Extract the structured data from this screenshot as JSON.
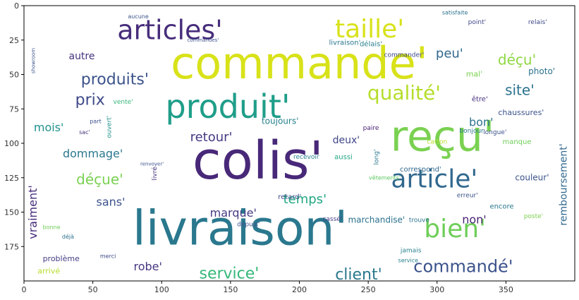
{
  "chart_data": {
    "type": "wordcloud",
    "x_ticks": [
      "0",
      "50",
      "100",
      "150",
      "200",
      "250",
      "300",
      "350"
    ],
    "y_ticks": [
      "0",
      "25",
      "50",
      "75",
      "100",
      "125",
      "150",
      "175"
    ],
    "x_range": [
      0,
      400
    ],
    "y_range": [
      0,
      200
    ],
    "y_inverted": true,
    "grid": false,
    "words": [
      {
        "text": "commande'",
        "x": 200,
        "y": 44,
        "size": 62,
        "color": "#d8e219",
        "rot": 0
      },
      {
        "text": "livraison'",
        "x": 157,
        "y": 164,
        "size": 68,
        "color": "#2a788e",
        "rot": 0
      },
      {
        "text": "colis'",
        "x": 170,
        "y": 115,
        "size": 74,
        "color": "#482878",
        "rot": 0
      },
      {
        "text": "reçu'",
        "x": 304,
        "y": 97,
        "size": 60,
        "color": "#7ad151",
        "rot": 0
      },
      {
        "text": "produit'",
        "x": 148,
        "y": 75,
        "size": 46,
        "color": "#1f9e89",
        "rot": 0
      },
      {
        "text": "articles'",
        "x": 106,
        "y": 19,
        "size": 38,
        "color": "#472d7b",
        "rot": 0
      },
      {
        "text": "taille'",
        "x": 251,
        "y": 18,
        "size": 36,
        "color": "#d8e219",
        "rot": 0
      },
      {
        "text": "article'",
        "x": 298,
        "y": 127,
        "size": 36,
        "color": "#31688e",
        "rot": 0
      },
      {
        "text": "bien'",
        "x": 313,
        "y": 163,
        "size": 36,
        "color": "#6ece58",
        "rot": 0
      },
      {
        "text": "qualité'",
        "x": 276,
        "y": 64,
        "size": 28,
        "color": "#b5de2b",
        "rot": 0
      },
      {
        "text": "commandé'",
        "x": 319,
        "y": 190,
        "size": 24,
        "color": "#3b528b",
        "rot": 0
      },
      {
        "text": "produits'",
        "x": 66,
        "y": 54,
        "size": 22,
        "color": "#3b528b",
        "rot": 0
      },
      {
        "text": "prix",
        "x": 48,
        "y": 69,
        "size": 22,
        "color": "#3e4989",
        "rot": 0
      },
      {
        "text": "service'",
        "x": 149,
        "y": 195,
        "size": 22,
        "color": "#35b779",
        "rot": 0
      },
      {
        "text": "client'",
        "x": 243,
        "y": 196,
        "size": 22,
        "color": "#2a788e",
        "rot": 0
      },
      {
        "text": "déçu'",
        "x": 358,
        "y": 40,
        "size": 20,
        "color": "#90d743",
        "rot": 0
      },
      {
        "text": "site'",
        "x": 360,
        "y": 62,
        "size": 20,
        "color": "#2c728e",
        "rot": 0
      },
      {
        "text": "peu'",
        "x": 309,
        "y": 35,
        "size": 18,
        "color": "#31688e",
        "rot": 0
      },
      {
        "text": "autre",
        "x": 42,
        "y": 37,
        "size": 14,
        "color": "#46327e",
        "rot": 0
      },
      {
        "text": "mois'",
        "x": 18,
        "y": 89,
        "size": 16,
        "color": "#21918c",
        "rot": 0
      },
      {
        "text": "dommage'",
        "x": 50,
        "y": 108,
        "size": 16,
        "color": "#2a788e",
        "rot": 0
      },
      {
        "text": "déçue'",
        "x": 55,
        "y": 127,
        "size": 20,
        "color": "#7ad151",
        "rot": 0
      },
      {
        "text": "sans'",
        "x": 63,
        "y": 143,
        "size": 16,
        "color": "#3b528b",
        "rot": 0
      },
      {
        "text": "retour'",
        "x": 136,
        "y": 96,
        "size": 18,
        "color": "#443983",
        "rot": 0
      },
      {
        "text": "robe'",
        "x": 90,
        "y": 190,
        "size": 16,
        "color": "#453781",
        "rot": 0
      },
      {
        "text": "marque'",
        "x": 152,
        "y": 151,
        "size": 16,
        "color": "#443983",
        "rot": 0
      },
      {
        "text": "temps'",
        "x": 204,
        "y": 141,
        "size": 18,
        "color": "#22a884",
        "rot": 0
      },
      {
        "text": "deux'",
        "x": 234,
        "y": 98,
        "size": 14,
        "color": "#404688",
        "rot": 0
      },
      {
        "text": "toujours'",
        "x": 186,
        "y": 84,
        "size": 12,
        "color": "#27808e",
        "rot": 0
      },
      {
        "text": "bon'",
        "x": 332,
        "y": 85,
        "size": 16,
        "color": "#2c728e",
        "rot": 0
      },
      {
        "text": "non'",
        "x": 327,
        "y": 156,
        "size": 16,
        "color": "#482374",
        "rot": 0
      },
      {
        "text": "chaussures'",
        "x": 361,
        "y": 78,
        "size": 11,
        "color": "#3b528b",
        "rot": 0
      },
      {
        "text": "photo'",
        "x": 376,
        "y": 48,
        "size": 12,
        "color": "#2c728e",
        "rot": 0
      },
      {
        "text": "couleur'",
        "x": 369,
        "y": 125,
        "size": 12,
        "color": "#3b528b",
        "rot": 0
      },
      {
        "text": "correspond'",
        "x": 288,
        "y": 119,
        "size": 10,
        "color": "#31688e",
        "rot": 0
      },
      {
        "text": "marchandise'",
        "x": 256,
        "y": 156,
        "size": 12,
        "color": "#2c728e",
        "rot": 0
      },
      {
        "text": "problème",
        "x": 27,
        "y": 184,
        "size": 11,
        "color": "#433e85",
        "rot": 0
      },
      {
        "text": "arrivé",
        "x": 18,
        "y": 193,
        "size": 11,
        "color": "#b5de2b",
        "rot": 0
      },
      {
        "text": "vraiment'",
        "x": 7,
        "y": 150,
        "size": 16,
        "color": "#472d7b",
        "rot": -90
      },
      {
        "text": "remboursement'",
        "x": 392,
        "y": 130,
        "size": 14,
        "color": "#31688e",
        "rot": -90
      },
      {
        "text": "livré",
        "x": 95,
        "y": 122,
        "size": 9,
        "color": "#46327e",
        "rot": -90
      },
      {
        "text": "long'",
        "x": 256,
        "y": 110,
        "size": 9,
        "color": "#2a788e",
        "rot": -90
      },
      {
        "text": "ouvert'",
        "x": 62,
        "y": 88,
        "size": 9,
        "color": "#21918c",
        "rot": -90
      },
      {
        "text": "retard'",
        "x": 193,
        "y": 139,
        "size": 10,
        "color": "#3e4989",
        "rot": 0
      },
      {
        "text": "depuis'",
        "x": 163,
        "y": 159,
        "size": 9,
        "color": "#3b528b",
        "rot": 0
      },
      {
        "text": "cassé'",
        "x": 224,
        "y": 155,
        "size": 9,
        "color": "#433e85",
        "rot": 0
      },
      {
        "text": "recevoir",
        "x": 205,
        "y": 110,
        "size": 9,
        "color": "#26828e",
        "rot": 0
      },
      {
        "text": "aussi",
        "x": 232,
        "y": 110,
        "size": 10,
        "color": "#22a884",
        "rot": 0
      },
      {
        "text": "délais'",
        "x": 252,
        "y": 28,
        "size": 10,
        "color": "#27808e",
        "rot": 0
      },
      {
        "text": "livraison'",
        "x": 233,
        "y": 27,
        "size": 10,
        "color": "#2a788e",
        "rot": 0
      },
      {
        "text": "commander'",
        "x": 276,
        "y": 36,
        "size": 9,
        "color": "#3e4989",
        "rot": 0
      },
      {
        "text": "point'",
        "x": 329,
        "y": 12,
        "size": 9,
        "color": "#3e4989",
        "rot": 0
      },
      {
        "text": "relais'",
        "x": 373,
        "y": 12,
        "size": 9,
        "color": "#3e4989",
        "rot": 0
      },
      {
        "text": "mal'",
        "x": 327,
        "y": 50,
        "size": 11,
        "color": "#7ad151",
        "rot": 0
      },
      {
        "text": "être'",
        "x": 331,
        "y": 68,
        "size": 10,
        "color": "#46327e",
        "rot": 0
      },
      {
        "text": "manque",
        "x": 358,
        "y": 99,
        "size": 10,
        "color": "#6ece58",
        "rot": 0
      },
      {
        "text": "encore",
        "x": 347,
        "y": 146,
        "size": 10,
        "color": "#2a788e",
        "rot": 0
      },
      {
        "text": "erreur'",
        "x": 322,
        "y": 138,
        "size": 9,
        "color": "#3b528b",
        "rot": 0
      },
      {
        "text": "trouve",
        "x": 287,
        "y": 156,
        "size": 9,
        "color": "#2c728e",
        "rot": 0
      },
      {
        "text": "poste'",
        "x": 370,
        "y": 153,
        "size": 9,
        "color": "#7ad151",
        "rot": 0
      },
      {
        "text": "longue'",
        "x": 342,
        "y": 92,
        "size": 9,
        "color": "#3b528b",
        "rot": 0
      },
      {
        "text": "paire",
        "x": 252,
        "y": 89,
        "size": 9,
        "color": "#482374",
        "rot": 0
      },
      {
        "text": "carton",
        "x": 300,
        "y": 99,
        "size": 9,
        "color": "#b5de2b",
        "rot": 0
      },
      {
        "text": "bonjour",
        "x": 325,
        "y": 91,
        "size": 9,
        "color": "#2a788e",
        "rot": 0
      },
      {
        "text": "jamais",
        "x": 281,
        "y": 178,
        "size": 9,
        "color": "#27808e",
        "rot": 0
      },
      {
        "text": "service",
        "x": 279,
        "y": 185,
        "size": 8,
        "color": "#26828e",
        "rot": 0
      },
      {
        "text": "vente'",
        "x": 72,
        "y": 70,
        "size": 9,
        "color": "#35b779",
        "rot": 0
      },
      {
        "text": "part",
        "x": 52,
        "y": 84,
        "size": 8,
        "color": "#3b528b",
        "rot": 0
      },
      {
        "text": "déjà",
        "x": 32,
        "y": 168,
        "size": 8,
        "color": "#2c728e",
        "rot": 0
      },
      {
        "text": "merci",
        "x": 61,
        "y": 182,
        "size": 8,
        "color": "#3e4989",
        "rot": 0
      },
      {
        "text": "bonne",
        "x": 20,
        "y": 161,
        "size": 8,
        "color": "#6ece58",
        "rot": 0
      },
      {
        "text": "sac'",
        "x": 44,
        "y": 92,
        "size": 8,
        "color": "#46327e",
        "rot": 0
      },
      {
        "text": "vêtements'",
        "x": 262,
        "y": 125,
        "size": 8,
        "color": "#5ec962",
        "rot": 0
      },
      {
        "text": "aucune",
        "x": 83,
        "y": 8,
        "size": 8,
        "color": "#3b528b",
        "rot": 0
      },
      {
        "text": "satisfaite",
        "x": 313,
        "y": 5,
        "size": 8,
        "color": "#2c728e",
        "rot": 0
      },
      {
        "text": "commandes'",
        "x": 130,
        "y": 25,
        "size": 7,
        "color": "#3b528b",
        "rot": 0
      },
      {
        "text": "showroom",
        "x": 7,
        "y": 40,
        "size": 7,
        "color": "#3b528b",
        "rot": -90
      },
      {
        "text": "renvoyer'",
        "x": 93,
        "y": 115,
        "size": 7,
        "color": "#3b528b",
        "rot": 0
      }
    ]
  }
}
